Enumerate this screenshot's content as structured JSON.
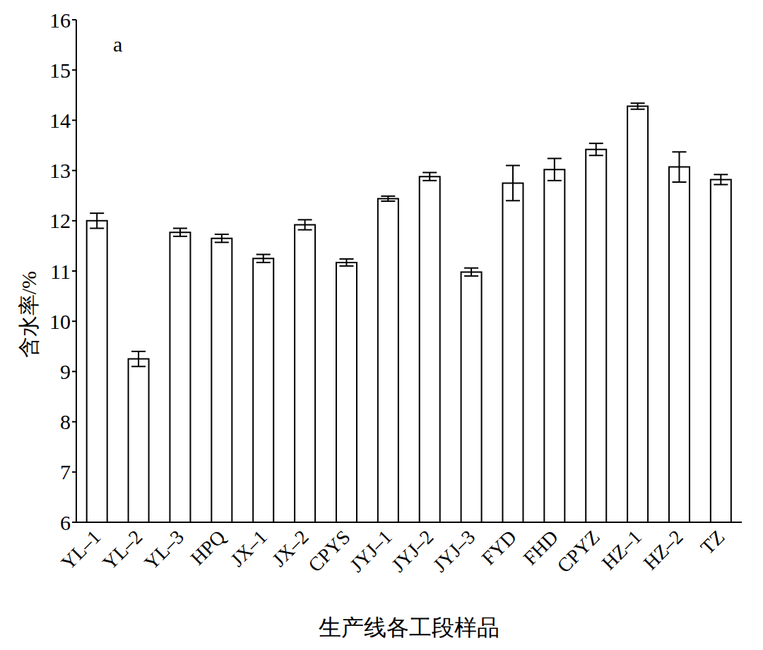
{
  "chart_data": {
    "type": "bar",
    "annotation": "a",
    "xlabel": "生产线各工段样品",
    "ylabel": "含水率/%",
    "categories": [
      "YL–1",
      "YL–2",
      "YL–3",
      "HPQ",
      "JX–1",
      "JX–2",
      "CPYS",
      "JYJ–1",
      "JYJ–2",
      "JYJ–3",
      "FYD",
      "FHD",
      "CPYZ",
      "HZ–1",
      "HZ–2",
      "TZ"
    ],
    "values": [
      12.0,
      9.25,
      11.77,
      11.65,
      11.25,
      11.92,
      11.17,
      12.44,
      12.88,
      10.98,
      12.75,
      13.02,
      13.42,
      14.28,
      13.07,
      12.82
    ],
    "errors": [
      0.15,
      0.15,
      0.08,
      0.08,
      0.08,
      0.1,
      0.07,
      0.05,
      0.08,
      0.08,
      0.35,
      0.22,
      0.12,
      0.06,
      0.3,
      0.1
    ],
    "color": "#ffffff",
    "ylim": [
      6,
      16
    ],
    "yticks": [
      6,
      7,
      8,
      9,
      10,
      11,
      12,
      13,
      14,
      15,
      16
    ]
  }
}
